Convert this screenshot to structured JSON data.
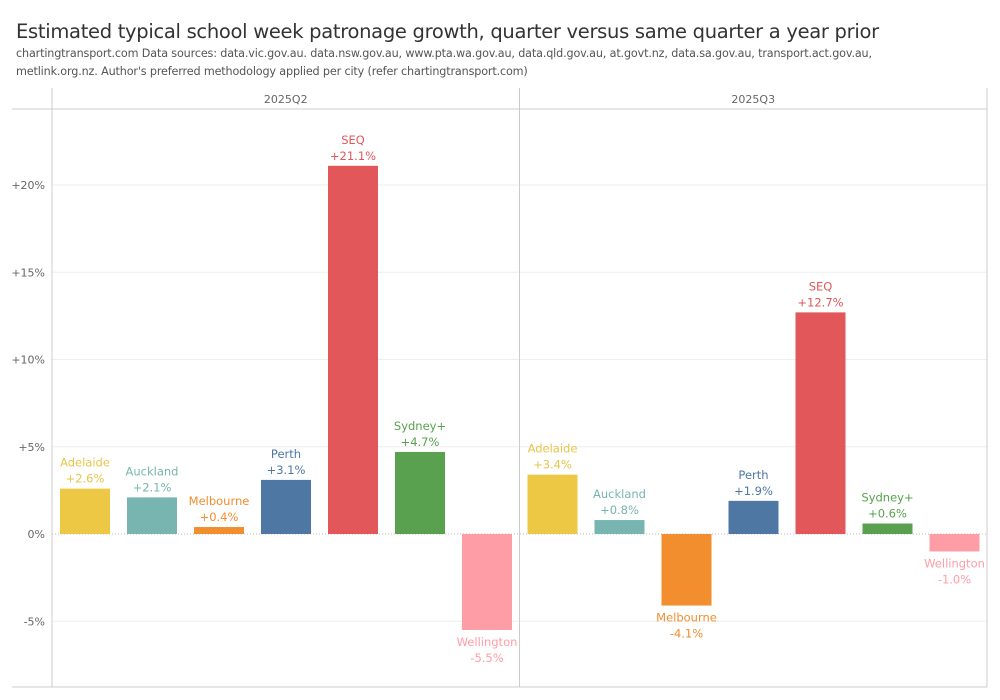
{
  "header": {
    "title": "Estimated typical school week patronage growth, quarter versus same quarter a year prior",
    "subtitle_line1": "chartingtransport.com  Data sources: data.vic.gov.au. data.nsw.gov.au, www.pta.wa.gov.au, data.qld.gov.au, at.govt.nz, data.sa.gov.au, transport.act.gov.au,",
    "subtitle_line2": "metlink.org.nz. Author's preferred methodology applied per city (refer chartingtransport.com)"
  },
  "chart_data": {
    "type": "bar",
    "title": "Estimated typical school week patronage growth, quarter versus same quarter a year prior",
    "xlabel": "",
    "ylabel": "",
    "ylim": [
      -8.5,
      24.5
    ],
    "yticks": [
      -5,
      0,
      5,
      10,
      15,
      20
    ],
    "ytick_labels": [
      "-5%",
      "0%",
      "+5%",
      "+10%",
      "+15%",
      "+20%"
    ],
    "grid": true,
    "legend": "none",
    "categories": [
      "Adelaide",
      "Auckland",
      "Melbourne",
      "Perth",
      "SEQ",
      "Sydney+",
      "Wellington"
    ],
    "colors": {
      "Adelaide": "#ECC845",
      "Auckland": "#78B5B0",
      "Melbourne": "#F28E2E",
      "Perth": "#4E77A3",
      "SEQ": "#E1575A",
      "Sydney+": "#59A14F",
      "Wellington": "#FF9DA7"
    },
    "label_colors": {
      "Adelaide": "#E8C54A",
      "Auckland": "#78B5B0",
      "Melbourne": "#F28E2E",
      "Perth": "#4E77A3",
      "SEQ": "#E1575A",
      "Sydney+": "#59A14F",
      "Wellington": "#FF9DA7"
    },
    "panels": [
      {
        "name": "2025Q2",
        "values": [
          2.6,
          2.1,
          0.4,
          3.1,
          21.1,
          4.7,
          -5.5
        ],
        "labels": [
          "+2.6%",
          "+2.1%",
          "+0.4%",
          "+3.1%",
          "+21.1%",
          "+4.7%",
          "-5.5%"
        ]
      },
      {
        "name": "2025Q3",
        "values": [
          3.4,
          0.8,
          -4.1,
          1.9,
          12.7,
          0.6,
          -1.0
        ],
        "labels": [
          "+3.4%",
          "+0.8%",
          "-4.1%",
          "+1.9%",
          "+12.7%",
          "+0.6%",
          "-1.0%"
        ]
      }
    ]
  }
}
